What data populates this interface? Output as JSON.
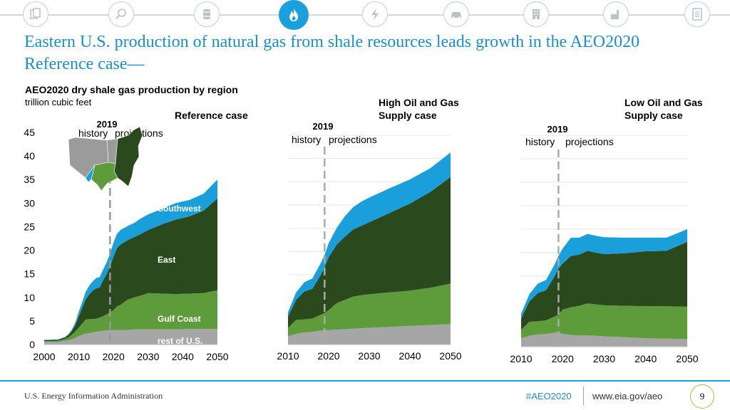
{
  "nav": {
    "icons": [
      "documents-icon",
      "magnifier-icon",
      "oil-barrel-icon",
      "natural-gas-flame-icon",
      "electricity-icon",
      "car-icon",
      "building-icon",
      "factory-icon",
      "report-icon"
    ],
    "active": "natural-gas-flame-icon",
    "accent": "#1aa0dc"
  },
  "title": "Eastern U.S. production of natural gas from shale resources leads growth in the AEO2020 Reference case—",
  "subtitle": "AEO2020 dry shale gas production by region",
  "unit": "trillion cubic feet",
  "colors": {
    "rest": "#a6a6a6",
    "gulf": "#5e9b3a",
    "east": "#2a4a1d",
    "southwest": "#1b9fdb"
  },
  "chart_data": [
    {
      "type": "area",
      "title": "Reference case",
      "x": [
        2000,
        2004,
        2006,
        2007,
        2008,
        2009,
        2010,
        2011,
        2012,
        2013,
        2014,
        2015,
        2016,
        2017,
        2018,
        2019,
        2020,
        2021,
        2022,
        2024,
        2026,
        2028,
        2030,
        2034,
        2038,
        2042,
        2046,
        2050
      ],
      "series": [
        {
          "name": "rest of U.S.",
          "values": [
            0.6,
            0.6,
            0.8,
            0.9,
            1.1,
            1.4,
            1.8,
            2.1,
            2.3,
            2.4,
            2.6,
            2.7,
            2.8,
            2.9,
            3.0,
            3.1,
            3.1,
            3.1,
            3.1,
            3.1,
            3.2,
            3.2,
            3.2,
            3.2,
            3.2,
            3.3,
            3.3,
            3.3
          ]
        },
        {
          "name": "Gulf Coast",
          "values": [
            0.1,
            0.2,
            0.4,
            0.6,
            1.0,
            1.4,
            1.8,
            2.4,
            3.0,
            3.0,
            2.8,
            2.8,
            2.9,
            3.1,
            3.4,
            3.7,
            4.2,
            5.0,
            5.3,
            6.4,
            6.8,
            7.2,
            7.7,
            7.6,
            7.5,
            7.5,
            7.6,
            8.2
          ]
        },
        {
          "name": "East",
          "values": [
            0.2,
            0.2,
            0.3,
            0.5,
            0.8,
            1.3,
            2.4,
            3.3,
            4.3,
            5.2,
            6.0,
            6.4,
            6.4,
            7.6,
            8.5,
            9.8,
            11.3,
            12.3,
            12.8,
            12.6,
            12.8,
            13.1,
            13.4,
            14.7,
            15.8,
            16.4,
            17.5,
            19.5
          ]
        },
        {
          "name": "Southwest",
          "values": [
            0.1,
            0.1,
            0.1,
            0.2,
            0.3,
            0.6,
            1.0,
            1.3,
            1.6,
            1.9,
            2.0,
            2.2,
            2.2,
            2.3,
            2.5,
            2.7,
            3.0,
            3.1,
            3.1,
            3.0,
            3.0,
            3.3,
            3.3,
            3.3,
            3.5,
            3.5,
            3.6,
            4.0
          ]
        }
      ],
      "xlim": [
        2000,
        2050
      ],
      "ylim": [
        0,
        45
      ],
      "xticks": [
        2000,
        2010,
        2020,
        2030,
        2040,
        2050
      ],
      "yticks": [
        0,
        5,
        10,
        15,
        20,
        25,
        30,
        35,
        40,
        45
      ],
      "divider_year": 2019,
      "labels": {
        "year": "2019",
        "history": "history",
        "projections": "projections"
      },
      "region_labels": {
        "rest": "rest of U.S.",
        "gulf": "Gulf Coast",
        "east": "East",
        "southwest": "Southwest"
      }
    },
    {
      "type": "area",
      "title": "High Oil and Gas Supply case",
      "x": [
        2010,
        2012,
        2014,
        2016,
        2018,
        2019,
        2020,
        2022,
        2024,
        2026,
        2028,
        2030,
        2035,
        2040,
        2045,
        2050
      ],
      "series": [
        {
          "name": "rest of U.S.",
          "values": [
            1.8,
            2.3,
            2.6,
            2.7,
            3.0,
            3.1,
            3.1,
            3.2,
            3.3,
            3.4,
            3.5,
            3.6,
            3.8,
            4.0,
            4.2,
            4.4
          ]
        },
        {
          "name": "Gulf Coast",
          "values": [
            1.8,
            3.0,
            2.8,
            2.9,
            3.4,
            3.7,
            4.3,
            5.7,
            6.3,
            6.9,
            7.1,
            7.2,
            7.4,
            7.6,
            8.0,
            8.7
          ]
        },
        {
          "name": "East",
          "values": [
            2.4,
            4.3,
            6.0,
            6.4,
            8.5,
            9.8,
            11.4,
            12.6,
            13.6,
            14.4,
            14.9,
            15.5,
            17.1,
            18.7,
            20.6,
            22.9
          ]
        },
        {
          "name": "Southwest",
          "values": [
            1.0,
            1.6,
            2.0,
            2.2,
            2.5,
            2.7,
            3.0,
            3.6,
            4.4,
            4.8,
            5.2,
            5.3,
            5.3,
            5.2,
            5.1,
            5.3
          ]
        }
      ],
      "xlim": [
        2010,
        2050
      ],
      "ylim": [
        0,
        45
      ],
      "xticks": [
        2010,
        2020,
        2030,
        2040,
        2050
      ],
      "divider_year": 2019,
      "labels": {
        "year": "2019",
        "history": "history",
        "projections": "projections"
      }
    },
    {
      "type": "area",
      "title": "Low Oil and Gas Supply case",
      "x": [
        2010,
        2012,
        2014,
        2016,
        2018,
        2019,
        2020,
        2022,
        2024,
        2026,
        2028,
        2030,
        2035,
        2040,
        2045,
        2050
      ],
      "series": [
        {
          "name": "rest of U.S.",
          "values": [
            1.8,
            2.3,
            2.6,
            2.7,
            3.0,
            3.1,
            2.7,
            2.5,
            2.4,
            2.4,
            2.3,
            2.2,
            2.0,
            1.8,
            1.7,
            1.6
          ]
        },
        {
          "name": "Gulf Coast",
          "values": [
            1.8,
            3.0,
            2.8,
            2.9,
            3.4,
            3.7,
            5.2,
            5.9,
            6.3,
            6.8,
            6.7,
            6.6,
            6.7,
            6.8,
            6.9,
            6.9
          ]
        },
        {
          "name": "East",
          "values": [
            2.4,
            4.3,
            6.0,
            6.4,
            8.5,
            9.8,
            9.8,
            10.9,
            10.9,
            11.2,
            11.0,
            10.9,
            11.2,
            11.7,
            11.8,
            13.8
          ]
        },
        {
          "name": "Southwest",
          "values": [
            1.0,
            1.6,
            2.0,
            2.2,
            2.5,
            2.7,
            3.2,
            3.9,
            3.6,
            3.6,
            3.6,
            3.6,
            3.3,
            2.9,
            2.8,
            2.7
          ]
        }
      ],
      "xlim": [
        2010,
        2050
      ],
      "ylim": [
        0,
        45
      ],
      "xticks": [
        2010,
        2020,
        2030,
        2040,
        2050
      ],
      "divider_year": 2019,
      "labels": {
        "year": "2019",
        "history": "history",
        "projections": "projections"
      }
    }
  ],
  "case_titles": {
    "reference": "Reference case",
    "high_line1": "High Oil and Gas",
    "high_line2": "Supply case",
    "low_line1": "Low Oil and Gas",
    "low_line2": "Supply case"
  },
  "footer": {
    "source": "U.S. Energy Information Administration",
    "hashtag": "#AEO2020",
    "url": "www.eia.gov/aeo",
    "page": "9"
  }
}
